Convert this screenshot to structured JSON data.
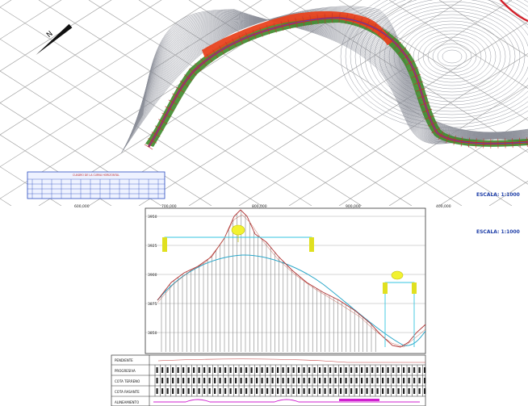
{
  "plan": {
    "scale_label": "ESCALA: 1:1000",
    "legend_title": "CUADRO DE LA CURVA HORIZONTAL",
    "coord_labels": [
      "600,000",
      "700,000",
      "800,000",
      "900,000",
      "400,000"
    ],
    "colors": {
      "road": "#d4202a",
      "cut": "#e8431f",
      "fill": "#3d8a2a",
      "axis": "#2a5bd7",
      "contour": "#8a8d97",
      "grid": "#9a9a9a"
    }
  },
  "profile": {
    "scale_label": "ESCALA: 1:1000",
    "y_tick_labels": [
      "3950",
      "3925",
      "3900",
      "3875",
      "3850"
    ],
    "row_labels": [
      "PENDIENTE",
      "PROGRESIVA",
      "COTA TERRENO",
      "COTA RASANTE",
      "ALINEAMIENTO"
    ],
    "colors": {
      "terrain": "#b03030",
      "grade": "#2aa7c9",
      "bracket": "#35c6e0",
      "marker": "#e0e020",
      "circle_accent": "#d020d0"
    }
  }
}
